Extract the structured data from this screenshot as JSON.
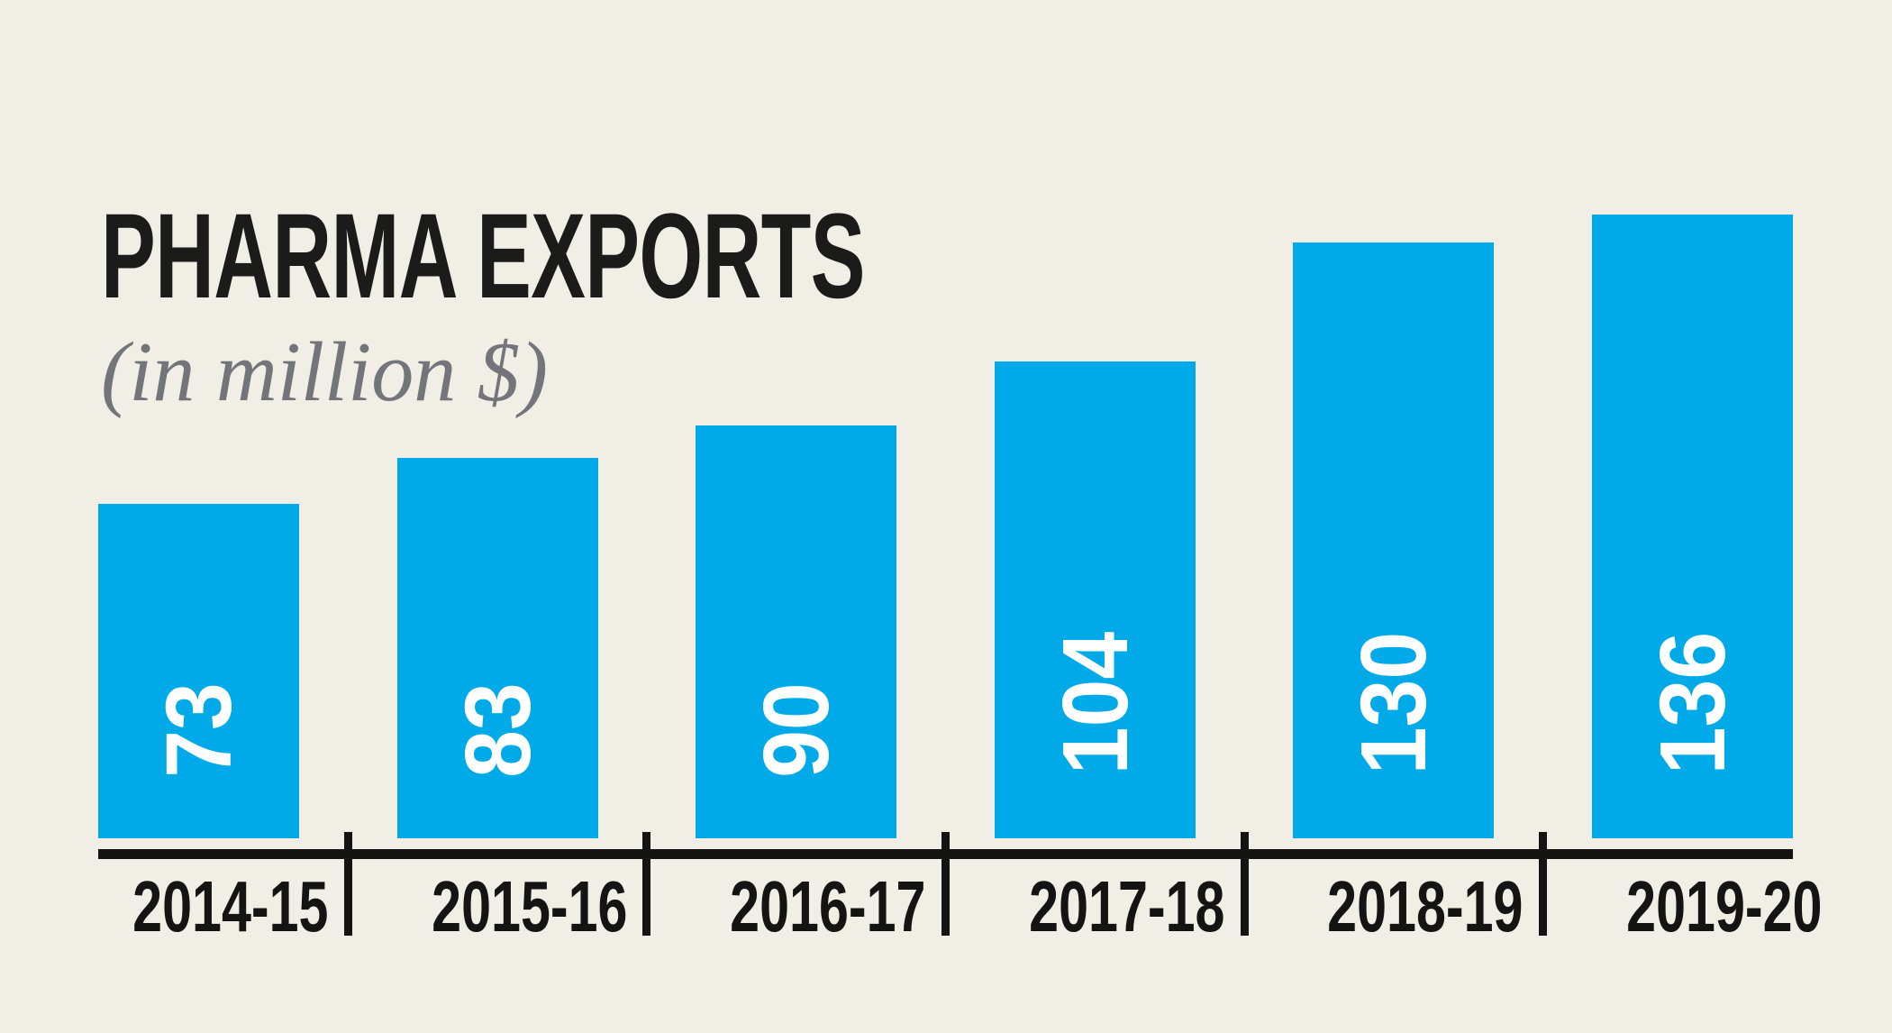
{
  "title": "PHARMA EXPORTS",
  "subtitle": "(in million $)",
  "chart_data": {
    "type": "bar",
    "title": "PHARMA EXPORTS",
    "subtitle": "(in million $)",
    "unit": "million $",
    "categories": [
      "2014-15",
      "2015-16",
      "2016-17",
      "2017-18",
      "2018-19",
      "2019-20"
    ],
    "values": [
      73,
      83,
      90,
      104,
      130,
      136
    ],
    "xlabel": "",
    "ylabel": "",
    "ylim": [
      0,
      183
    ],
    "grid": false,
    "legend": "none",
    "value_label_style": "white, bold, rotated 90deg counterclockwise, anchored near bottom inside bar",
    "axis_ticks": "black tick marks on x-axis between categories only"
  },
  "colors": {
    "background": "#f1eee6",
    "bar": "#00aae8",
    "title": "#1b1b19",
    "subtitle": "#74757a",
    "axis": "#141412",
    "tick_label": "#141412",
    "value_label": "#ffffff"
  }
}
